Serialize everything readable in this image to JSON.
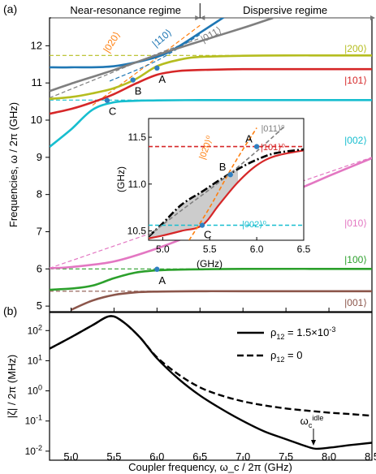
{
  "chart_data": [
    {
      "panel": "(a)",
      "type": "line",
      "regime_labels": [
        "Near-resonance regime",
        "Dispersive regime"
      ],
      "regime_boundary_x": 6.5,
      "xlim": [
        4.75,
        8.5
      ],
      "ylim": [
        4.85,
        12.75
      ],
      "ylabel": "Frequencies, ω / 2π (GHz)",
      "yticks": [
        5,
        6,
        7,
        8,
        9,
        10,
        11,
        12
      ],
      "xticks": [
        5.0,
        5.5,
        6.0,
        6.5,
        7.0,
        7.5,
        8.0,
        8.5
      ],
      "state_labels": [
        "|200⟩",
        "|101⟩",
        "|002⟩",
        "|010⟩",
        "|100⟩",
        "|001⟩",
        "|020⟩",
        "|110⟩",
        "|011⟩"
      ],
      "series": [
        {
          "name": "|200⟩",
          "color": "#b5bd1f",
          "x": [
            4.75,
            5.0,
            5.25,
            5.5,
            5.75,
            6.0,
            6.25,
            6.5,
            7.0,
            7.5,
            8.0,
            8.5
          ],
          "y": [
            10.57,
            10.62,
            10.72,
            10.86,
            11.1,
            11.45,
            11.62,
            11.7,
            11.73,
            11.74,
            11.74,
            11.74
          ]
        },
        {
          "name": "|101⟩",
          "color": "#d62728",
          "x": [
            4.75,
            5.0,
            5.25,
            5.5,
            5.75,
            6.0,
            6.25,
            6.5,
            7.0,
            7.5,
            8.0,
            8.5
          ],
          "y": [
            10.17,
            10.3,
            10.48,
            10.7,
            10.98,
            11.22,
            11.32,
            11.35,
            11.37,
            11.37,
            11.37,
            11.37
          ]
        },
        {
          "name": "|002⟩",
          "color": "#17becf",
          "x": [
            4.75,
            5.0,
            5.25,
            5.5,
            5.75,
            6.0,
            6.5,
            7.0,
            7.5,
            8.0,
            8.5
          ],
          "y": [
            9.28,
            9.75,
            10.28,
            10.48,
            10.52,
            10.53,
            10.54,
            10.54,
            10.54,
            10.54,
            10.54
          ]
        },
        {
          "name": "|010⟩",
          "color": "#e377c2",
          "x": [
            4.75,
            5.0,
            5.5,
            6.0,
            6.5,
            7.0,
            7.5,
            8.0,
            8.5
          ],
          "y": [
            6.02,
            6.05,
            6.2,
            6.55,
            7.0,
            7.5,
            8.0,
            8.5,
            8.98
          ]
        },
        {
          "name": "|100⟩",
          "color": "#2ca02c",
          "x": [
            4.75,
            5.0,
            5.25,
            5.5,
            5.75,
            6.0,
            6.25,
            6.5,
            7.0,
            8.5
          ],
          "y": [
            5.44,
            5.47,
            5.55,
            5.75,
            5.9,
            5.96,
            5.98,
            5.99,
            6.0,
            6.0
          ]
        },
        {
          "name": "|001⟩",
          "color": "#8c564b",
          "x": [
            5.0,
            5.25,
            5.5,
            5.75,
            6.0,
            6.5,
            7.0,
            8.5
          ],
          "y": [
            4.9,
            5.15,
            5.3,
            5.37,
            5.39,
            5.4,
            5.4,
            5.4
          ]
        },
        {
          "name": "|110⟩",
          "color": "#1f77b4",
          "x": [
            4.75,
            5.0,
            5.5,
            6.0,
            6.25,
            6.5,
            6.8
          ],
          "y": [
            11.42,
            11.42,
            11.45,
            11.7,
            11.98,
            12.35,
            12.8
          ]
        },
        {
          "name": "|011⟩",
          "color": "#7f7f7f",
          "x": [
            4.75,
            5.0,
            5.5,
            6.0,
            6.5,
            7.0,
            7.35
          ],
          "y": [
            10.78,
            10.98,
            11.35,
            11.75,
            12.12,
            12.48,
            12.75
          ]
        }
      ],
      "markers": [
        {
          "label": "A",
          "x": 6.0,
          "y": 11.4
        },
        {
          "label": "B",
          "x": 5.72,
          "y": 11.08
        },
        {
          "label": "C",
          "x": 5.42,
          "y": 10.53
        },
        {
          "label": "A",
          "x": 6.0,
          "y": 5.99
        }
      ],
      "inset": {
        "ylabel": "(GHz)",
        "xlabel": "(GHz)",
        "xlim": [
          4.85,
          6.5
        ],
        "ylim": [
          10.4,
          11.7
        ],
        "xticks": [
          5.0,
          5.5,
          6.0,
          6.5
        ],
        "yticks": [
          10.5,
          11.0,
          11.5
        ],
        "labels": [
          "|020⟩⁰",
          "|011⟩⁰",
          "|101⟩⁰",
          "|002⟩⁰"
        ],
        "markers": [
          {
            "label": "A",
            "x": 6.0,
            "y": 11.4
          },
          {
            "label": "B",
            "x": 5.72,
            "y": 11.1
          },
          {
            "label": "C",
            "x": 5.42,
            "y": 10.56
          }
        ],
        "series": [
          {
            "name": "|101⟩",
            "color": "#d62728",
            "x": [
              4.85,
              5.0,
              5.2,
              5.42,
              5.6,
              5.8,
              6.0,
              6.2,
              6.5
            ],
            "y": [
              10.42,
              10.45,
              10.5,
              10.56,
              10.78,
              11.02,
              11.2,
              11.3,
              11.36
            ]
          },
          {
            "color": "#000000",
            "x": [
              4.85,
              5.0,
              5.2,
              5.42,
              5.6,
              5.8,
              6.0,
              6.2,
              6.5
            ],
            "y": [
              10.44,
              10.58,
              10.78,
              10.92,
              11.04,
              11.16,
              11.26,
              11.33,
              11.37
            ]
          },
          {
            "name": "|020⟩⁰",
            "color": "#ff7f0e",
            "x": [
              5.28,
              5.5,
              5.75,
              6.0
            ],
            "y": [
              10.4,
              10.75,
              11.2,
              11.6
            ]
          },
          {
            "name": "|011⟩⁰",
            "color": "#7f7f7f",
            "x": [
              4.85,
              5.2,
              5.6,
              6.0,
              6.3
            ],
            "y": [
              10.45,
              10.72,
              11.02,
              11.35,
              11.62
            ]
          },
          {
            "name": "|101⟩⁰",
            "color": "#d62728",
            "x": [
              4.85,
              6.5
            ],
            "y": [
              11.4,
              11.4
            ]
          },
          {
            "name": "|002⟩⁰",
            "color": "#17becf",
            "x": [
              4.85,
              6.5
            ],
            "y": [
              10.56,
              10.56
            ]
          }
        ]
      }
    },
    {
      "panel": "(b)",
      "type": "line",
      "xlabel": "Coupler frequency, ω_c / 2π (GHz)",
      "ylabel": "|ζ| / 2π (MHz)",
      "xlim": [
        4.75,
        8.5
      ],
      "ylim_log10": [
        -2.3,
        2.6
      ],
      "xticks": [
        5.0,
        5.5,
        6.0,
        6.5,
        7.0,
        7.5,
        8.0,
        8.5
      ],
      "yticks": [
        "10^{-2}",
        "10^{-1}",
        "10^{0}",
        "10^{1}",
        "10^{2}"
      ],
      "legend": {
        "position": "right",
        "entries": [
          "ρ12 = 1.5×10^-3",
          "ρ12 = 0"
        ]
      },
      "annotation": "ω_c^idle",
      "annotation_x": 7.82,
      "series": [
        {
          "name": "ρ12 = 1.5×10^-3",
          "style": "solid",
          "x": [
            4.75,
            5.0,
            5.25,
            5.45,
            5.6,
            5.8,
            6.0,
            6.25,
            6.5,
            6.75,
            7.0,
            7.25,
            7.5,
            7.75,
            7.85,
            8.0,
            8.25,
            8.5
          ],
          "y": [
            25,
            60,
            150,
            300,
            200,
            60,
            12,
            2.5,
            0.7,
            0.25,
            0.1,
            0.045,
            0.025,
            0.014,
            0.012,
            0.013,
            0.016,
            0.019
          ]
        },
        {
          "name": "ρ12 = 0",
          "style": "dashed",
          "x": [
            4.75,
            5.0,
            5.25,
            5.45,
            5.6,
            5.8,
            6.0,
            6.25,
            6.5,
            6.75,
            7.0,
            7.25,
            7.5,
            7.75,
            8.0,
            8.25,
            8.5
          ],
          "y": [
            25,
            60,
            150,
            300,
            200,
            60,
            13,
            3.5,
            1.3,
            0.7,
            0.45,
            0.33,
            0.26,
            0.22,
            0.19,
            0.17,
            0.15
          ]
        }
      ]
    }
  ]
}
